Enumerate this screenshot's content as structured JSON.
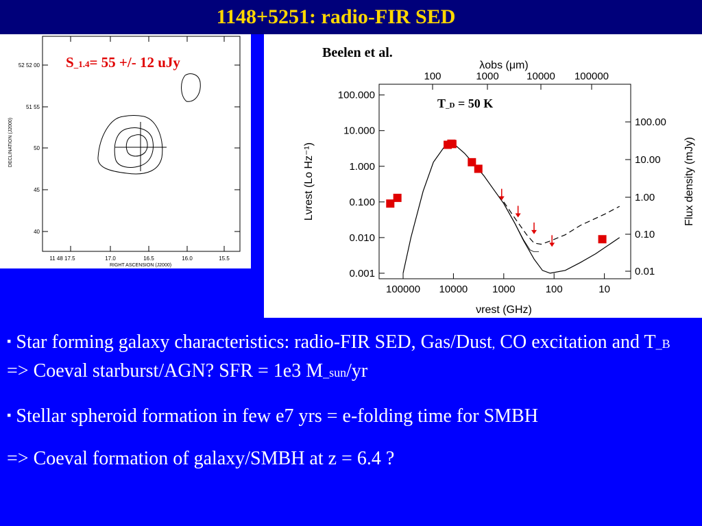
{
  "slide": {
    "title": "1148+5251: radio-FIR SED"
  },
  "radio_map": {
    "flux_label_prefix": "S",
    "flux_label_sub": "_1.4",
    "flux_label_rest": "= 55 +/- 12 uJy",
    "y_axis_label": "DECLINATION (J2000)",
    "x_axis_label": "RIGHT ASCENSION (J2000)",
    "y_ticks": [
      "52 52 00",
      "51 55",
      "50",
      "45",
      "40"
    ],
    "x_ticks": [
      "11 48 17.5",
      "17.0",
      "16.5",
      "16.0",
      "15.5"
    ]
  },
  "sed": {
    "credit": "Beelen et al.",
    "temp_label": "T_D = 50 K",
    "temp_prefix": "T",
    "temp_sub": "_D",
    "temp_rest": " = 50 K",
    "top_axis_title": "λobs (μm)",
    "bottom_axis_title": "νrest (GHz)",
    "left_axis_title": "Lνrest (Lo Hz⁻¹)",
    "right_axis_title": "Flux density (mJy)"
  },
  "chart_data": {
    "type": "scatter",
    "x_scale": "log",
    "y_scale": "log",
    "x_axis": {
      "label": "νrest (GHz)",
      "range": [
        300000,
        3
      ],
      "ticks": [
        100000,
        10000,
        1000,
        100,
        10
      ],
      "tick_labels": [
        "100000",
        "10000",
        "1000",
        "100",
        "10"
      ]
    },
    "x_top_axis": {
      "label": "λobs (μm)",
      "tick_labels": [
        "100",
        "1000",
        "10000",
        "100000"
      ]
    },
    "y_axis": {
      "label": "Lνrest (Lo Hz⁻¹)",
      "range": [
        0.0007,
        200
      ],
      "ticks": [
        100,
        10,
        1,
        0.1,
        0.01,
        0.001
      ],
      "tick_labels": [
        "100.000",
        "10.000",
        "1.000",
        "0.100",
        "0.010",
        "0.001"
      ]
    },
    "y_right_axis": {
      "label": "Flux density (mJy)",
      "tick_labels": [
        "100.00",
        "10.00",
        "1.00",
        "0.10",
        "0.01"
      ]
    },
    "series": [
      {
        "marker": "square",
        "color": "#e00000",
        "points": [
          {
            "x": 180000,
            "y": 0.09
          },
          {
            "x": 130000,
            "y": 0.13
          },
          {
            "x": 13000,
            "y": 4.0
          },
          {
            "x": 11000,
            "y": 4.3
          },
          {
            "x": 10500,
            "y": 4.2
          },
          {
            "x": 4300,
            "y": 1.3
          },
          {
            "x": 3200,
            "y": 0.85
          },
          {
            "x": 11,
            "y": 0.009
          }
        ]
      },
      {
        "marker": "upper-limit-arrow",
        "color": "#e00000",
        "points": [
          {
            "x": 1100,
            "y": 0.15
          },
          {
            "x": 520,
            "y": 0.05
          },
          {
            "x": 250,
            "y": 0.017
          },
          {
            "x": 110,
            "y": 0.0075
          }
        ]
      },
      {
        "type": "line",
        "style": "solid",
        "color": "#000000",
        "points": [
          [
            100000,
            0.001
          ],
          [
            70000,
            0.01
          ],
          [
            40000,
            0.2
          ],
          [
            25000,
            1.3
          ],
          [
            15000,
            3.6
          ],
          [
            12000,
            4.2
          ],
          [
            9000,
            3.8
          ],
          [
            6000,
            2.3
          ],
          [
            4000,
            1.2
          ],
          [
            2500,
            0.55
          ],
          [
            1500,
            0.2
          ],
          [
            1000,
            0.09
          ],
          [
            600,
            0.025
          ],
          [
            400,
            0.008
          ],
          [
            250,
            0.0025
          ],
          [
            170,
            0.0012
          ],
          [
            120,
            0.001
          ],
          [
            60,
            0.0012
          ],
          [
            30,
            0.002
          ],
          [
            15,
            0.0035
          ],
          [
            5,
            0.01
          ]
        ]
      },
      {
        "type": "line",
        "style": "solid-thin",
        "color": "#000000",
        "points": [
          [
            1000,
            0.09
          ],
          [
            600,
            0.025
          ],
          [
            400,
            0.0085
          ],
          [
            300,
            0.0045
          ],
          [
            250,
            0.004
          ],
          [
            200,
            0.004
          ]
        ]
      },
      {
        "type": "line",
        "style": "dashed",
        "color": "#000000",
        "points": [
          [
            1000,
            0.1
          ],
          [
            600,
            0.035
          ],
          [
            350,
            0.012
          ],
          [
            250,
            0.007
          ],
          [
            180,
            0.0065
          ],
          [
            120,
            0.008
          ],
          [
            60,
            0.012
          ],
          [
            30,
            0.022
          ],
          [
            10,
            0.045
          ],
          [
            5,
            0.075
          ]
        ]
      }
    ]
  },
  "bullets": {
    "b1_part1": "Star forming galaxy characteristics: radio-FIR SED,  Gas/Dust",
    "b1_comma": ",",
    "b1_part2": " CO excitation and T",
    "b1_sub1": "_B",
    "b1_part3": "  => Coeval starburst/AGN?  SFR = 1e3 M",
    "b1_sub2": "_sun",
    "b1_part4": "/yr",
    "b2": "Stellar spheroid formation in few e7 yrs = e-folding time for SMBH",
    "b3": "=> Coeval formation of galaxy/SMBH at z = 6.4 ?",
    "bullet_glyph": "▪"
  }
}
